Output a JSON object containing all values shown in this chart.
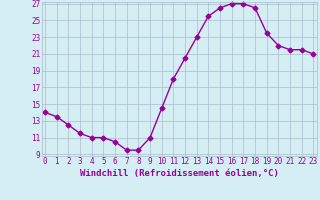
{
  "x": [
    0,
    1,
    2,
    3,
    4,
    5,
    6,
    7,
    8,
    9,
    10,
    11,
    12,
    13,
    14,
    15,
    16,
    17,
    18,
    19,
    20,
    21,
    22,
    23
  ],
  "y": [
    14.0,
    13.5,
    12.5,
    11.5,
    11.0,
    11.0,
    10.5,
    9.5,
    9.5,
    11.0,
    14.5,
    18.0,
    20.5,
    23.0,
    25.5,
    26.5,
    27.0,
    27.0,
    26.5,
    23.5,
    22.0,
    21.5,
    21.5,
    21.0
  ],
  "line_color": "#990099",
  "marker": "D",
  "markersize": 2.5,
  "linewidth": 1.0,
  "xlabel": "Windchill (Refroidissement éolien,°C)",
  "xlabel_fontsize": 6.5,
  "bg_color": "#d5eef3",
  "grid_color": "#aabbcc",
  "tick_color": "#990099",
  "tick_fontsize": 5.5,
  "ylim_min": 9,
  "ylim_max": 27,
  "xlim_min": 0,
  "xlim_max": 23,
  "yticks": [
    9,
    11,
    13,
    15,
    17,
    19,
    21,
    23,
    25,
    27
  ],
  "xticks": [
    0,
    1,
    2,
    3,
    4,
    5,
    6,
    7,
    8,
    9,
    10,
    11,
    12,
    13,
    14,
    15,
    16,
    17,
    18,
    19,
    20,
    21,
    22,
    23
  ]
}
